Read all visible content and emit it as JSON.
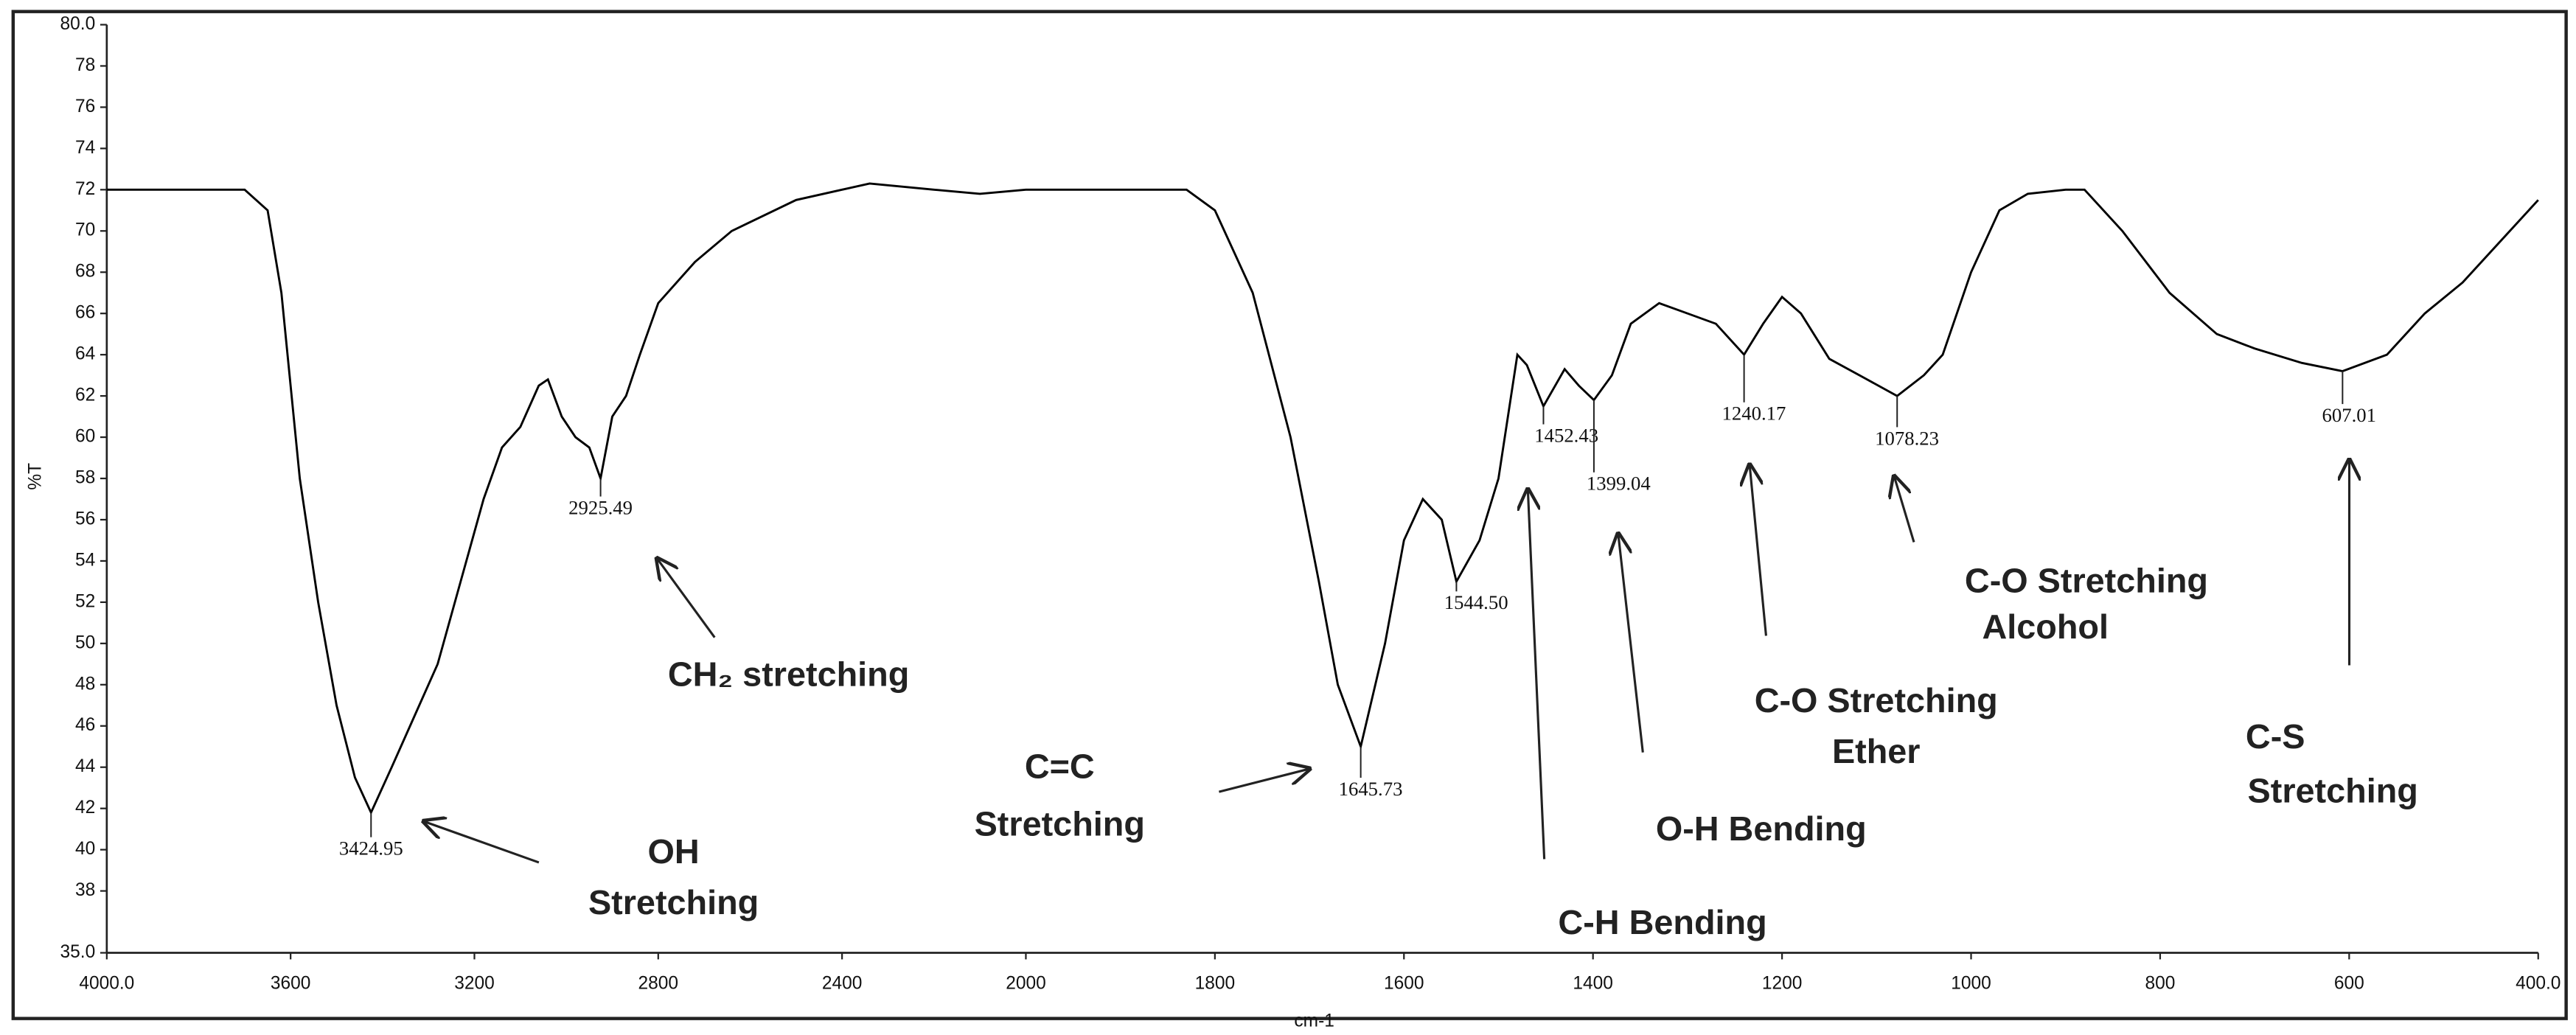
{
  "chart_data": {
    "type": "line",
    "xlabel": "cm-1",
    "ylabel": "%T",
    "color": "#000000",
    "x": [
      4000,
      3700,
      3650,
      3620,
      3580,
      3540,
      3500,
      3460,
      3424.95,
      3380,
      3330,
      3280,
      3230,
      3180,
      3140,
      3100,
      3060,
      3040,
      3010,
      2980,
      2950,
      2925.49,
      2900,
      2870,
      2840,
      2800,
      2720,
      2640,
      2500,
      2340,
      2200,
      2100,
      2000,
      1900,
      1830,
      1800,
      1760,
      1720,
      1690,
      1670,
      1645.73,
      1620,
      1600,
      1580,
      1560,
      1544.5,
      1520,
      1500,
      1480,
      1470,
      1452.43,
      1430,
      1415,
      1399.04,
      1380,
      1360,
      1330,
      1300,
      1270,
      1240.17,
      1220,
      1200,
      1180,
      1150,
      1110,
      1078.23,
      1050,
      1030,
      1000,
      970,
      940,
      900,
      880,
      840,
      790,
      740,
      700,
      650,
      607.01,
      560,
      520,
      480,
      440,
      400
    ],
    "values": [
      72,
      72,
      71,
      67,
      58,
      52,
      47,
      43.5,
      41.8,
      44,
      46.5,
      49,
      53,
      57,
      59.5,
      60.5,
      62.5,
      62.8,
      61,
      60,
      59.5,
      58,
      61,
      62,
      64,
      66.5,
      68.5,
      70,
      71.5,
      72.3,
      72,
      71.8,
      72,
      72,
      72,
      71,
      67,
      60,
      53,
      48,
      45,
      50,
      55,
      57,
      56,
      53,
      55,
      58,
      64,
      63.5,
      61.5,
      63.3,
      62.5,
      61.8,
      63,
      65.5,
      66.5,
      66,
      65.5,
      64,
      65.5,
      66.8,
      66,
      63.8,
      62.8,
      62,
      63,
      64,
      68,
      71,
      71.8,
      72,
      72,
      70,
      67,
      65,
      64.3,
      63.6,
      63.2,
      64,
      66,
      67.5,
      69.5,
      71.5
    ],
    "xlim": [
      4000,
      400
    ],
    "ylim": [
      35,
      80
    ],
    "xticks": [
      {
        "value": 4000,
        "label": "4000.0"
      },
      3600,
      3200,
      2800,
      2400,
      2000,
      1800,
      1600,
      1400,
      1200,
      1000,
      800,
      600,
      {
        "value": 400,
        "label": "400.0"
      }
    ],
    "yticks": [
      {
        "value": 35,
        "label": "35.0"
      },
      38,
      40,
      42,
      44,
      46,
      48,
      50,
      52,
      54,
      56,
      58,
      60,
      62,
      64,
      66,
      68,
      70,
      72,
      74,
      76,
      78,
      {
        "value": 80,
        "label": "80.0"
      }
    ],
    "peaks": {
      "x": [
        3424.95,
        2925.49,
        1645.73,
        1544.5,
        1452.43,
        1399.04,
        1240.17,
        1078.23,
        607.01
      ],
      "labels": [
        "3424.95",
        "2925.49",
        "1645.73",
        "1544.50",
        "1452.43",
        "1399.04",
        "1240.17",
        "1078.23",
        "607.01"
      ]
    },
    "annotations": [
      {
        "lines": [
          "OH",
          "Stretching"
        ]
      },
      {
        "lines": [
          "CH₂ stretching"
        ]
      },
      {
        "lines": [
          "C=C",
          "Stretching"
        ]
      },
      {
        "lines": [
          "C-H Bending"
        ]
      },
      {
        "lines": [
          "O-H Bending"
        ]
      },
      {
        "lines": [
          "C-O Stretching",
          "Ether"
        ]
      },
      {
        "lines": [
          "C-O Stretching",
          "Alcohol"
        ]
      },
      {
        "lines": [
          "C-S",
          "Stretching"
        ]
      }
    ]
  }
}
